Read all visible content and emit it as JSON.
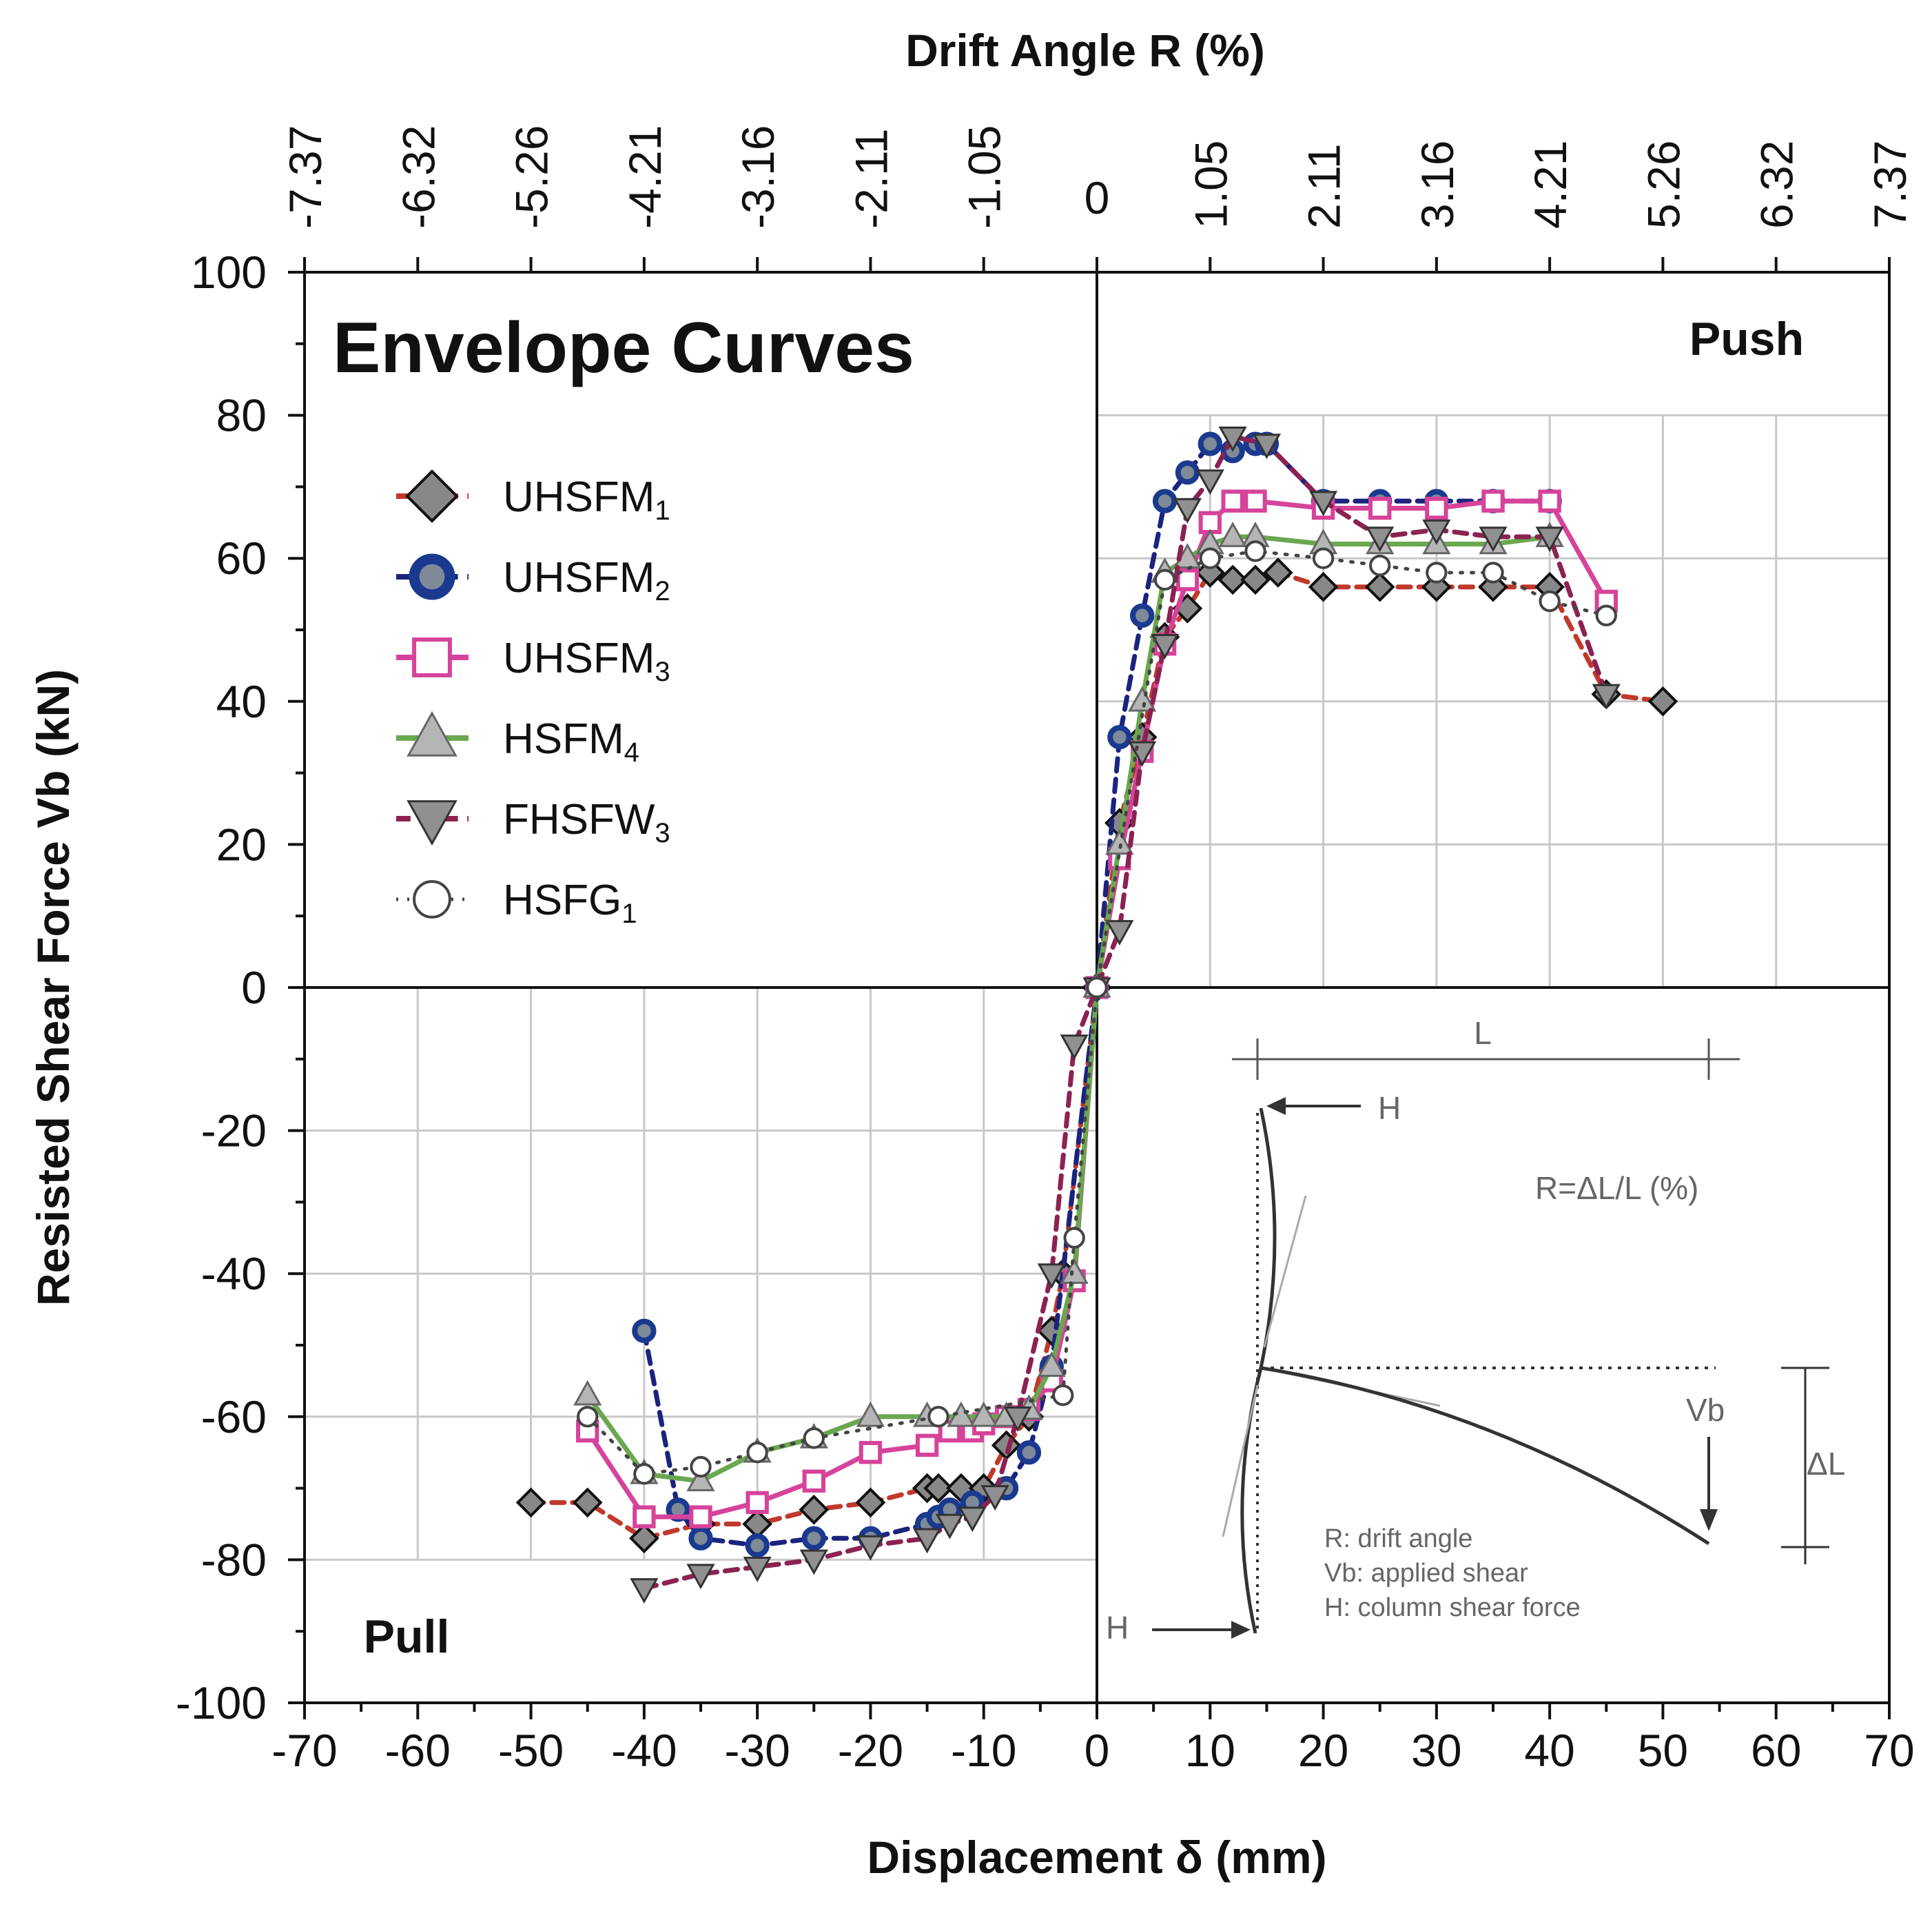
{
  "chart_data": {
    "type": "scatter",
    "title": "Envelope Curves",
    "xlabel": "Displacement δ (mm)",
    "ylabel": "Resisted Shear Force Vb (kN)",
    "x2label": "Drift Angle R (%)",
    "xlim": [
      -70,
      70
    ],
    "ylim": [
      -100,
      100
    ],
    "x_ticks": [
      "-70",
      "-60",
      "-50",
      "-40",
      "-30",
      "-20",
      "-10",
      "0",
      "10",
      "20",
      "30",
      "40",
      "50",
      "60",
      "70"
    ],
    "y_ticks": [
      "-100",
      "-80",
      "-60",
      "-40",
      "-20",
      "0",
      "20",
      "40",
      "60",
      "80",
      "100"
    ],
    "x2_ticks": [
      "-7.37",
      "-6.32",
      "-5.26",
      "-4.21",
      "-3.16",
      "-2.11",
      "-1.05",
      "0",
      "1.05",
      "2.11",
      "3.16",
      "4.21",
      "5.26",
      "6.32",
      "7.37"
    ],
    "quadrant_labels": {
      "push": "Push",
      "pull": "Pull"
    },
    "grid": true,
    "legend_position": "upper-left",
    "series": [
      {
        "name": "UHSFM",
        "sub": "1",
        "marker": "diamond",
        "color": "#555555",
        "line_color": "#c0392b",
        "dash": "dash",
        "x": [
          -50,
          -45,
          -40,
          -35,
          -30,
          -25,
          -20,
          -15,
          -14,
          -12,
          -10,
          -8,
          -6,
          -4,
          -3,
          0,
          2,
          4,
          6,
          8,
          10,
          12,
          14,
          16,
          20,
          25,
          30,
          35,
          40,
          45,
          50
        ],
        "y": [
          -72,
          -72,
          -77,
          -75,
          -75,
          -73,
          -72,
          -70,
          -70,
          -70,
          -70,
          -64,
          -60,
          -48,
          -40,
          0,
          23,
          35,
          49,
          53,
          58,
          57,
          57,
          58,
          56,
          56,
          56,
          56,
          56,
          41,
          40
        ]
      },
      {
        "name": "UHSFM",
        "sub": "2",
        "marker": "circle-bold",
        "color": "#1a3a8f",
        "line_color": "#1a237e",
        "dash": "dash",
        "x": [
          -40,
          -37,
          -35,
          -30,
          -25,
          -20,
          -15,
          -14,
          -13,
          -11,
          -8,
          -6,
          -4,
          0,
          2,
          4,
          6,
          8,
          10,
          12,
          14,
          15,
          20,
          25,
          30,
          35,
          40
        ],
        "y": [
          -48,
          -73,
          -77,
          -78,
          -77,
          -77,
          -75,
          -74,
          -73,
          -72,
          -70,
          -65,
          -53,
          0,
          35,
          52,
          68,
          72,
          76,
          75,
          76,
          76,
          68,
          68,
          68,
          68,
          68
        ]
      },
      {
        "name": "UHSFM",
        "sub": "3",
        "marker": "square",
        "color": "#d6439a",
        "line_color": "#d6439a",
        "dash": "solid",
        "x": [
          -45,
          -40,
          -35,
          -30,
          -25,
          -20,
          -15,
          -13,
          -11,
          -10,
          -8,
          -6,
          -4,
          -2,
          0,
          2,
          4,
          6,
          8,
          10,
          12,
          14,
          20,
          25,
          30,
          35,
          40,
          45
        ],
        "y": [
          -62,
          -74,
          -74,
          -72,
          -69,
          -65,
          -64,
          -62,
          -62,
          -61,
          -60,
          -59,
          -55,
          -41,
          0,
          18,
          33,
          48,
          57,
          65,
          68,
          68,
          67,
          67,
          67,
          68,
          68,
          54
        ]
      },
      {
        "name": "HSFM",
        "sub": "4",
        "marker": "triangle-up",
        "color": "#9aa0a6",
        "line_color": "#6aa84f",
        "dash": "solid",
        "x": [
          -45,
          -40,
          -35,
          -30,
          -25,
          -20,
          -15,
          -12,
          -10,
          -8,
          -6,
          -4,
          -2,
          0,
          2,
          4,
          6,
          8,
          10,
          12,
          14,
          20,
          25,
          30,
          35,
          40
        ],
        "y": [
          -57,
          -68,
          -69,
          -65,
          -63,
          -60,
          -60,
          -60,
          -60,
          -60,
          -59,
          -53,
          -40,
          0,
          20,
          40,
          58,
          60,
          62,
          63,
          63,
          62,
          62,
          62,
          62,
          63
        ]
      },
      {
        "name": "FHSFW",
        "sub": "3",
        "marker": "triangle-down",
        "color": "#777777",
        "line_color": "#8b2252",
        "dash": "dash",
        "x": [
          -40,
          -35,
          -30,
          -25,
          -20,
          -15,
          -13,
          -11,
          -9,
          -7,
          -4,
          -2,
          0,
          2,
          4,
          6,
          8,
          10,
          12,
          15,
          20,
          25,
          30,
          35,
          40,
          45
        ],
        "y": [
          -84,
          -82,
          -81,
          -80,
          -78,
          -77,
          -75,
          -74,
          -71,
          -60,
          -40,
          -8,
          0,
          8,
          33,
          48,
          67,
          71,
          77,
          76,
          68,
          63,
          64,
          63,
          63,
          41
        ]
      },
      {
        "name": "HSFG",
        "sub": "1",
        "marker": "circle-open",
        "color": "#444444",
        "line_color": "#444444",
        "dash": "dot",
        "x": [
          -45,
          -40,
          -35,
          -30,
          -25,
          -14,
          -3,
          -2,
          0,
          6,
          10,
          14,
          20,
          25,
          30,
          35,
          40,
          45
        ],
        "y": [
          -60,
          -68,
          -67,
          -65,
          -63,
          -60,
          -57,
          -35,
          0,
          57,
          60,
          61,
          60,
          59,
          58,
          58,
          54,
          52
        ]
      }
    ],
    "inset": {
      "L": "L",
      "H_top": "H",
      "formula": "R=ΔL/L (%)",
      "Vb": "Vb",
      "dL": "ΔL",
      "H_bottom": "H",
      "notes": [
        "R: drift angle",
        "Vb: applied shear",
        "H: column shear force"
      ]
    }
  }
}
